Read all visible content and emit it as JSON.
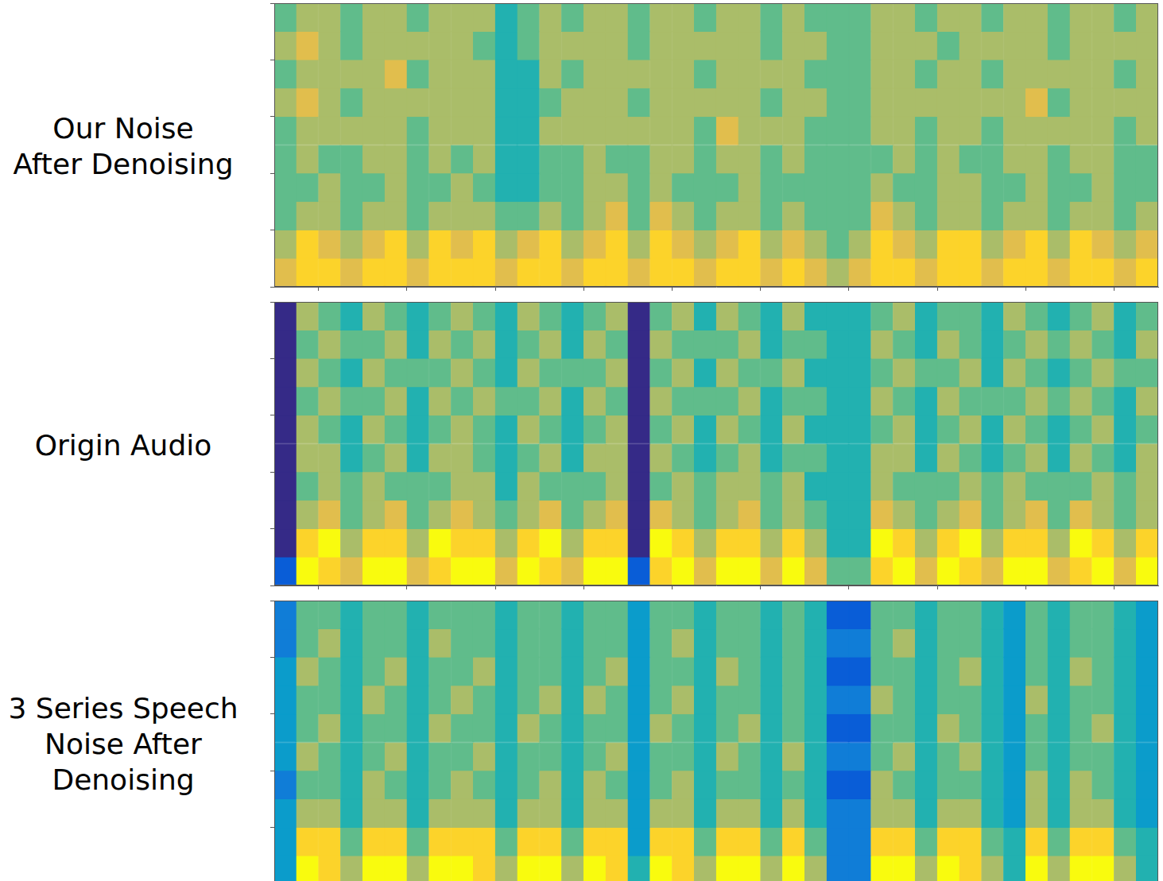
{
  "chart_data": [
    {
      "type": "heatmap",
      "title": [
        "Our Noise",
        "After Denoising"
      ],
      "xlim": [
        0,
        40
      ],
      "ylim": [
        0,
        10
      ],
      "xticks": [
        0,
        4,
        8,
        12,
        16,
        20,
        24,
        28,
        32,
        36,
        40
      ],
      "yticks": [
        0,
        2,
        4,
        6,
        8,
        10
      ],
      "tick_labels": false,
      "color_range": [
        0,
        9
      ],
      "cells": [
        [
          5,
          6,
          6,
          5,
          6,
          6,
          5,
          6,
          6,
          6,
          4,
          5,
          6,
          5,
          6,
          6,
          5,
          6,
          6,
          5,
          6,
          6,
          5,
          6,
          5,
          5,
          5,
          6,
          6,
          5,
          6,
          6,
          5,
          6,
          6,
          5,
          6,
          6,
          5,
          6
        ],
        [
          6,
          7,
          6,
          5,
          6,
          6,
          6,
          6,
          6,
          5,
          4,
          5,
          6,
          6,
          6,
          6,
          5,
          6,
          6,
          6,
          6,
          6,
          5,
          6,
          6,
          5,
          5,
          6,
          6,
          6,
          5,
          6,
          6,
          6,
          6,
          5,
          6,
          6,
          6,
          6
        ],
        [
          5,
          6,
          6,
          6,
          6,
          7,
          5,
          6,
          6,
          6,
          4,
          4,
          6,
          5,
          6,
          6,
          6,
          6,
          6,
          5,
          6,
          6,
          6,
          6,
          5,
          5,
          5,
          6,
          6,
          5,
          6,
          6,
          5,
          6,
          6,
          6,
          6,
          6,
          5,
          6
        ],
        [
          6,
          7,
          6,
          5,
          6,
          6,
          6,
          6,
          6,
          6,
          4,
          4,
          5,
          6,
          6,
          6,
          5,
          6,
          6,
          6,
          6,
          6,
          5,
          6,
          6,
          5,
          5,
          6,
          6,
          6,
          6,
          6,
          6,
          6,
          7,
          5,
          6,
          6,
          6,
          6
        ],
        [
          5,
          6,
          6,
          6,
          6,
          6,
          5,
          6,
          6,
          6,
          4,
          4,
          6,
          6,
          6,
          6,
          6,
          6,
          6,
          5,
          7,
          6,
          6,
          6,
          5,
          5,
          5,
          6,
          6,
          5,
          6,
          6,
          5,
          6,
          6,
          6,
          6,
          6,
          5,
          6
        ],
        [
          5,
          6,
          5,
          5,
          6,
          6,
          5,
          6,
          5,
          6,
          4,
          4,
          5,
          5,
          6,
          5,
          5,
          6,
          6,
          5,
          6,
          6,
          5,
          6,
          5,
          5,
          5,
          5,
          6,
          5,
          6,
          5,
          5,
          6,
          6,
          5,
          6,
          6,
          5,
          5
        ],
        [
          5,
          5,
          6,
          5,
          5,
          6,
          5,
          5,
          6,
          5,
          4,
          4,
          5,
          5,
          6,
          6,
          5,
          6,
          5,
          5,
          5,
          6,
          5,
          5,
          5,
          5,
          5,
          6,
          5,
          5,
          6,
          6,
          5,
          5,
          6,
          5,
          5,
          6,
          5,
          5
        ],
        [
          5,
          6,
          6,
          5,
          6,
          6,
          5,
          6,
          6,
          6,
          5,
          5,
          6,
          5,
          6,
          7,
          5,
          7,
          6,
          5,
          6,
          6,
          5,
          6,
          5,
          5,
          5,
          7,
          6,
          5,
          6,
          6,
          5,
          6,
          6,
          5,
          6,
          6,
          5,
          6
        ],
        [
          6,
          8,
          7,
          6,
          7,
          8,
          6,
          8,
          7,
          8,
          6,
          7,
          8,
          6,
          7,
          8,
          6,
          8,
          7,
          6,
          7,
          8,
          6,
          7,
          6,
          5,
          6,
          8,
          7,
          6,
          8,
          8,
          6,
          7,
          8,
          6,
          8,
          7,
          6,
          7
        ],
        [
          7,
          8,
          8,
          7,
          8,
          8,
          7,
          8,
          8,
          8,
          7,
          8,
          8,
          7,
          8,
          8,
          7,
          8,
          8,
          7,
          8,
          8,
          7,
          8,
          7,
          6,
          7,
          8,
          8,
          7,
          8,
          8,
          7,
          8,
          8,
          7,
          8,
          8,
          7,
          8
        ]
      ]
    },
    {
      "type": "heatmap",
      "title": [
        "Origin Audio"
      ],
      "xlim": [
        0,
        40
      ],
      "ylim": [
        0,
        10
      ],
      "xticks": [
        0,
        4,
        8,
        12,
        16,
        20,
        24,
        28,
        32,
        36,
        40
      ],
      "yticks": [
        0,
        2,
        4,
        6,
        8,
        10
      ],
      "tick_labels": false,
      "color_range": [
        0,
        9
      ],
      "cells": [
        [
          0,
          6,
          5,
          4,
          6,
          5,
          4,
          5,
          6,
          5,
          4,
          6,
          5,
          4,
          5,
          6,
          0,
          5,
          6,
          4,
          6,
          5,
          4,
          6,
          4,
          4,
          4,
          5,
          6,
          4,
          5,
          5,
          4,
          6,
          5,
          4,
          5,
          6,
          4,
          5
        ],
        [
          0,
          5,
          6,
          5,
          5,
          6,
          4,
          6,
          5,
          6,
          4,
          5,
          6,
          4,
          6,
          5,
          0,
          6,
          5,
          5,
          5,
          6,
          4,
          5,
          5,
          4,
          4,
          6,
          5,
          4,
          6,
          5,
          4,
          5,
          6,
          5,
          6,
          5,
          4,
          6
        ],
        [
          0,
          6,
          5,
          4,
          6,
          5,
          5,
          5,
          6,
          5,
          4,
          6,
          5,
          5,
          5,
          6,
          0,
          5,
          6,
          4,
          6,
          5,
          5,
          6,
          4,
          4,
          4,
          5,
          6,
          5,
          5,
          6,
          4,
          6,
          5,
          4,
          5,
          6,
          5,
          5
        ],
        [
          0,
          5,
          6,
          5,
          5,
          6,
          4,
          6,
          5,
          6,
          5,
          5,
          6,
          4,
          6,
          5,
          0,
          6,
          5,
          5,
          5,
          6,
          4,
          5,
          5,
          4,
          4,
          6,
          5,
          4,
          6,
          5,
          5,
          5,
          6,
          5,
          6,
          5,
          4,
          6
        ],
        [
          0,
          6,
          5,
          4,
          6,
          5,
          4,
          5,
          6,
          5,
          4,
          6,
          5,
          4,
          5,
          6,
          0,
          5,
          6,
          4,
          6,
          5,
          4,
          6,
          4,
          4,
          4,
          5,
          6,
          4,
          5,
          6,
          4,
          6,
          5,
          4,
          5,
          6,
          4,
          5
        ],
        [
          0,
          6,
          6,
          4,
          5,
          6,
          4,
          6,
          6,
          5,
          4,
          5,
          6,
          4,
          6,
          6,
          0,
          6,
          5,
          4,
          5,
          6,
          4,
          5,
          5,
          4,
          4,
          6,
          6,
          4,
          6,
          5,
          4,
          5,
          6,
          4,
          6,
          5,
          4,
          6
        ],
        [
          0,
          5,
          6,
          5,
          6,
          5,
          5,
          5,
          6,
          6,
          4,
          6,
          5,
          5,
          5,
          6,
          0,
          5,
          6,
          5,
          6,
          6,
          5,
          6,
          4,
          4,
          4,
          6,
          5,
          5,
          5,
          6,
          5,
          6,
          5,
          5,
          5,
          6,
          5,
          6
        ],
        [
          0,
          6,
          7,
          5,
          6,
          7,
          5,
          6,
          7,
          6,
          5,
          6,
          7,
          5,
          6,
          7,
          0,
          7,
          6,
          5,
          6,
          7,
          5,
          6,
          5,
          4,
          4,
          7,
          6,
          5,
          6,
          7,
          5,
          6,
          7,
          5,
          7,
          6,
          5,
          6
        ],
        [
          0,
          8,
          9,
          6,
          8,
          8,
          6,
          9,
          8,
          8,
          6,
          8,
          9,
          6,
          8,
          8,
          0,
          9,
          8,
          6,
          8,
          8,
          6,
          8,
          6,
          4,
          4,
          9,
          8,
          6,
          8,
          9,
          6,
          8,
          8,
          6,
          9,
          8,
          6,
          8
        ],
        [
          1,
          9,
          8,
          7,
          9,
          9,
          7,
          8,
          9,
          9,
          7,
          9,
          8,
          7,
          9,
          9,
          1,
          8,
          9,
          7,
          9,
          9,
          7,
          9,
          7,
          5,
          5,
          8,
          9,
          7,
          9,
          8,
          7,
          9,
          9,
          7,
          8,
          9,
          7,
          9
        ]
      ]
    },
    {
      "type": "heatmap",
      "title": [
        "3 Series Speech",
        "Noise After",
        "Denoising"
      ],
      "xlim": [
        0,
        40
      ],
      "ylim": [
        0,
        10
      ],
      "xticks": [
        0,
        4,
        8,
        12,
        16,
        20,
        24,
        28,
        32,
        36,
        40
      ],
      "yticks": [
        0,
        2,
        4,
        6,
        8,
        10
      ],
      "tick_labels": false,
      "color_range": [
        0,
        9
      ],
      "cells": [
        [
          2,
          5,
          5,
          4,
          5,
          5,
          4,
          5,
          5,
          5,
          4,
          5,
          5,
          4,
          5,
          5,
          3,
          5,
          5,
          4,
          5,
          5,
          4,
          5,
          4,
          1,
          1,
          5,
          5,
          4,
          5,
          5,
          4,
          3,
          5,
          4,
          5,
          5,
          4,
          3
        ],
        [
          2,
          5,
          6,
          4,
          5,
          5,
          4,
          6,
          5,
          5,
          4,
          5,
          5,
          4,
          5,
          5,
          3,
          5,
          6,
          4,
          5,
          5,
          4,
          5,
          4,
          2,
          2,
          5,
          6,
          4,
          5,
          5,
          4,
          3,
          5,
          4,
          5,
          5,
          4,
          3
        ],
        [
          3,
          6,
          5,
          4,
          5,
          6,
          4,
          5,
          5,
          6,
          4,
          5,
          5,
          4,
          5,
          6,
          3,
          5,
          5,
          4,
          6,
          5,
          4,
          5,
          4,
          1,
          1,
          5,
          5,
          4,
          5,
          6,
          4,
          3,
          5,
          4,
          6,
          5,
          4,
          3
        ],
        [
          3,
          5,
          5,
          4,
          6,
          5,
          4,
          5,
          6,
          5,
          4,
          5,
          6,
          4,
          6,
          5,
          3,
          5,
          6,
          4,
          5,
          5,
          4,
          5,
          4,
          2,
          2,
          6,
          5,
          4,
          5,
          5,
          4,
          3,
          6,
          4,
          5,
          5,
          4,
          3
        ],
        [
          3,
          5,
          6,
          4,
          5,
          5,
          4,
          6,
          5,
          5,
          4,
          6,
          5,
          4,
          5,
          5,
          3,
          6,
          5,
          4,
          5,
          6,
          4,
          5,
          4,
          1,
          1,
          5,
          5,
          4,
          6,
          5,
          4,
          3,
          5,
          4,
          5,
          6,
          4,
          3
        ],
        [
          3,
          6,
          5,
          4,
          5,
          6,
          4,
          5,
          5,
          6,
          4,
          5,
          5,
          4,
          5,
          6,
          3,
          5,
          5,
          4,
          6,
          5,
          4,
          6,
          4,
          2,
          2,
          5,
          6,
          4,
          5,
          6,
          4,
          3,
          5,
          4,
          5,
          5,
          4,
          3
        ],
        [
          2,
          5,
          5,
          4,
          6,
          5,
          4,
          5,
          6,
          5,
          4,
          5,
          6,
          4,
          6,
          5,
          3,
          5,
          6,
          4,
          5,
          5,
          4,
          5,
          4,
          1,
          1,
          6,
          5,
          4,
          5,
          5,
          4,
          3,
          6,
          4,
          6,
          5,
          4,
          3
        ],
        [
          3,
          6,
          6,
          4,
          6,
          6,
          4,
          6,
          6,
          6,
          4,
          6,
          6,
          4,
          6,
          6,
          3,
          6,
          6,
          4,
          6,
          6,
          4,
          6,
          4,
          2,
          2,
          6,
          6,
          4,
          6,
          6,
          4,
          3,
          6,
          4,
          6,
          6,
          4,
          3
        ],
        [
          3,
          8,
          8,
          5,
          8,
          8,
          5,
          8,
          8,
          8,
          5,
          8,
          8,
          5,
          8,
          8,
          3,
          8,
          8,
          5,
          8,
          8,
          5,
          8,
          5,
          2,
          2,
          8,
          8,
          5,
          8,
          8,
          5,
          4,
          8,
          5,
          8,
          8,
          5,
          4
        ],
        [
          3,
          9,
          8,
          6,
          9,
          9,
          6,
          9,
          9,
          8,
          6,
          9,
          9,
          6,
          9,
          8,
          4,
          9,
          8,
          6,
          9,
          9,
          6,
          9,
          6,
          2,
          2,
          9,
          9,
          6,
          9,
          8,
          6,
          4,
          9,
          6,
          9,
          9,
          6,
          4
        ]
      ]
    }
  ]
}
